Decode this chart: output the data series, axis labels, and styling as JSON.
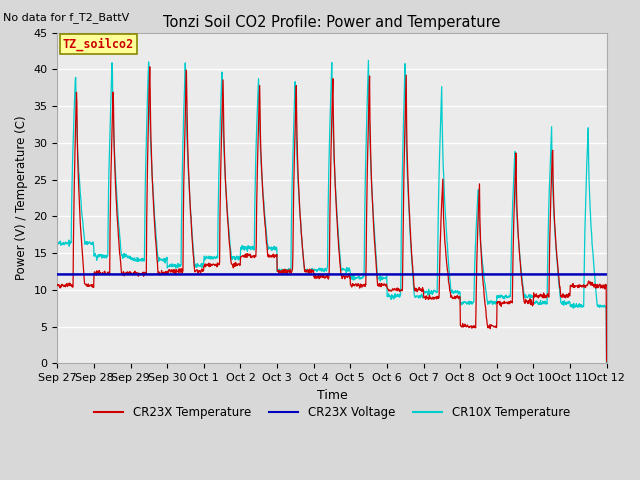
{
  "title": "Tonzi Soil CO2 Profile: Power and Temperature",
  "subtitle": "No data for f_T2_BattV",
  "xlabel": "Time",
  "ylabel": "Power (V) / Temperature (C)",
  "ylim": [
    0,
    45
  ],
  "yticks": [
    0,
    5,
    10,
    15,
    20,
    25,
    30,
    35,
    40,
    45
  ],
  "xtick_labels": [
    "Sep 27",
    "Sep 28",
    "Sep 29",
    "Sep 30",
    "Oct 1",
    "Oct 2",
    "Oct 3",
    "Oct 4",
    "Oct 5",
    "Oct 6",
    "Oct 7",
    "Oct 8",
    "Oct 9",
    "Oct 10",
    "Oct 11",
    "Oct 12"
  ],
  "legend_entries": [
    "CR23X Temperature",
    "CR23X Voltage",
    "CR10X Temperature"
  ],
  "cr23x_color": "#cc0000",
  "cr23x_volt_color": "#0000bb",
  "cr10x_color": "#00cccc",
  "bg_color": "#d8d8d8",
  "plot_bg_color": "#ebebeb",
  "grid_color": "#ffffff",
  "label_box_color": "#ffff99",
  "label_box_text": "TZ_soilco2",
  "label_box_text_color": "#cc0000",
  "label_box_edge_color": "#888800",
  "n_days": 15,
  "volt_level": 12.1,
  "cr23x_base": 10.5,
  "cr10x_base": 16.0,
  "cr23x_peak_early": 38.5,
  "cr23x_peak_late": 26.0,
  "cr10x_peak_early": 42.0,
  "cr10x_peak_late": 32.0
}
